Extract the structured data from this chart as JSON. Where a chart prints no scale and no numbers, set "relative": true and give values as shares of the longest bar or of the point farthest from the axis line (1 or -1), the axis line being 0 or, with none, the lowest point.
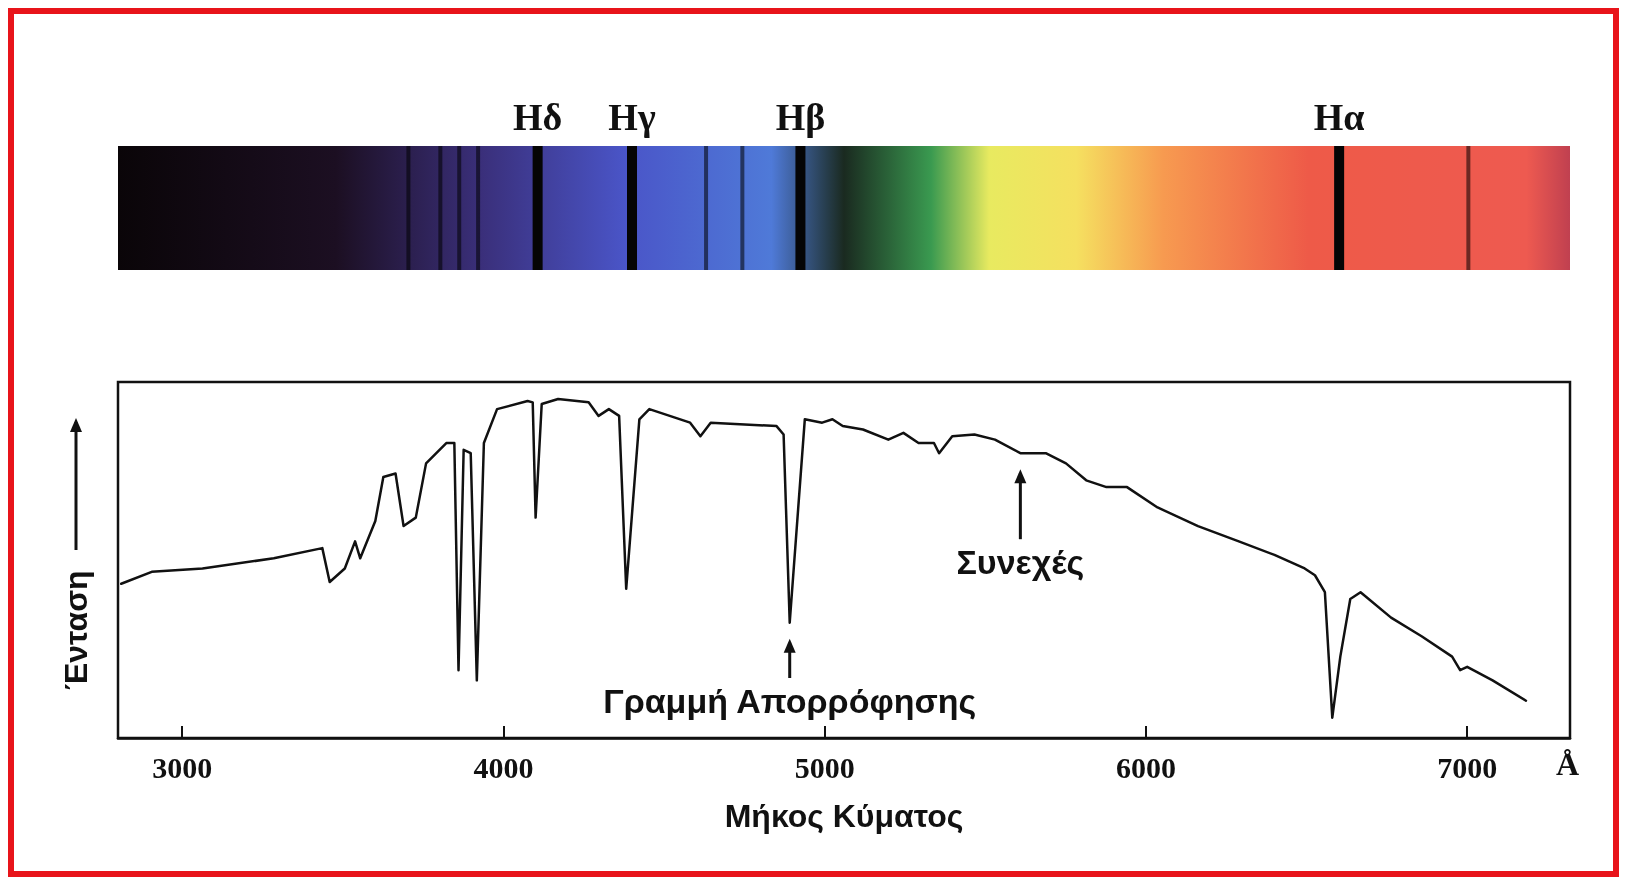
{
  "chart_data": {
    "type": "line",
    "relative": true,
    "xlabel": "Μήκος Κύματος",
    "ylabel": "Ένταση",
    "xlim": [
      2800,
      7320
    ],
    "xticks": [
      3000,
      4000,
      5000,
      6000,
      7000
    ],
    "grid": false,
    "marker": "none",
    "line_style": "solid",
    "x": [
      2810,
      2905,
      3063,
      3285,
      3436,
      3459,
      3506,
      3538,
      3554,
      3601,
      3626,
      3664,
      3689,
      3727,
      3759,
      3822,
      3847,
      3860,
      3876,
      3898,
      3917,
      3939,
      3980,
      4075,
      4091,
      4100,
      4119,
      4170,
      4265,
      4296,
      4328,
      4360,
      4382,
      4423,
      4454,
      4581,
      4613,
      4645,
      4850,
      4872,
      4891,
      4938,
      4992,
      5024,
      5056,
      5119,
      5198,
      5245,
      5292,
      5340,
      5356,
      5397,
      5466,
      5530,
      5609,
      5688,
      5751,
      5814,
      5877,
      5941,
      6036,
      6162,
      6289,
      6400,
      6494,
      6526,
      6557,
      6580,
      6605,
      6636,
      6668,
      6763,
      6858,
      6953,
      6978,
      7000,
      7079,
      7183
    ],
    "series": [
      {
        "color": "#111111",
        "values": [
          0.455,
          0.49,
          0.5,
          0.53,
          0.56,
          0.46,
          0.5,
          0.58,
          0.53,
          0.64,
          0.77,
          0.78,
          0.625,
          0.65,
          0.81,
          0.87,
          0.87,
          0.2,
          0.85,
          0.84,
          0.17,
          0.87,
          0.97,
          0.994,
          0.99,
          0.65,
          0.985,
          1.0,
          0.99,
          0.95,
          0.97,
          0.95,
          0.44,
          0.94,
          0.97,
          0.93,
          0.89,
          0.93,
          0.92,
          0.895,
          0.34,
          0.94,
          0.93,
          0.94,
          0.92,
          0.91,
          0.88,
          0.9,
          0.87,
          0.87,
          0.84,
          0.89,
          0.895,
          0.88,
          0.84,
          0.84,
          0.81,
          0.76,
          0.74,
          0.74,
          0.68,
          0.625,
          0.58,
          0.54,
          0.5,
          0.48,
          0.43,
          0.06,
          0.24,
          0.41,
          0.43,
          0.355,
          0.3,
          0.24,
          0.2,
          0.21,
          0.17,
          0.11
        ]
      }
    ],
    "annotations": [
      "Hδ",
      "Hγ",
      "Hβ",
      "Hα",
      {
        "text": "Γραμμή Απορρόφησης",
        "x": 4891,
        "y": 0.34
      },
      {
        "text": "Συνεχές",
        "x": 5609,
        "y": 0.84
      },
      "Å"
    ]
  }
}
